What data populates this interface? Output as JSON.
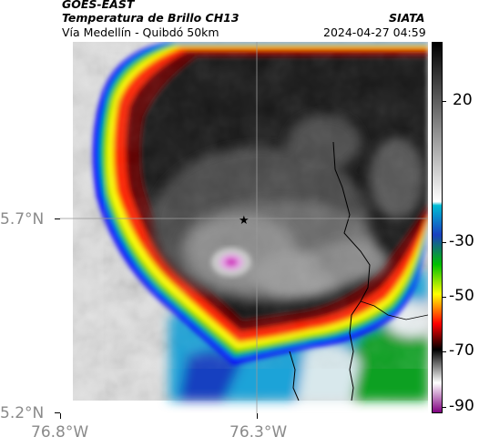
{
  "header": {
    "satellite": "GOES-EAST",
    "product": "Temperatura de Brillo CH13",
    "region": "Vía Medellín - Quibdó 50km",
    "agency": "SIATA",
    "datetime": "2024-04-27 04:59"
  },
  "map": {
    "lat_ticks": [
      "5.7°N",
      "5.2°N"
    ],
    "lon_ticks": [
      "76.8°W",
      "76.3°W"
    ],
    "marker": "star"
  },
  "colorbar": {
    "labels": [
      "20",
      "-30",
      "-50",
      "-70",
      "-90"
    ],
    "colors": [
      "#000000",
      "#ffffff",
      "#00bcd4",
      "#1a40c0",
      "#00c000",
      "#ffff00",
      "#ff0000",
      "#000000",
      "#ffffff",
      "#800080"
    ]
  }
}
